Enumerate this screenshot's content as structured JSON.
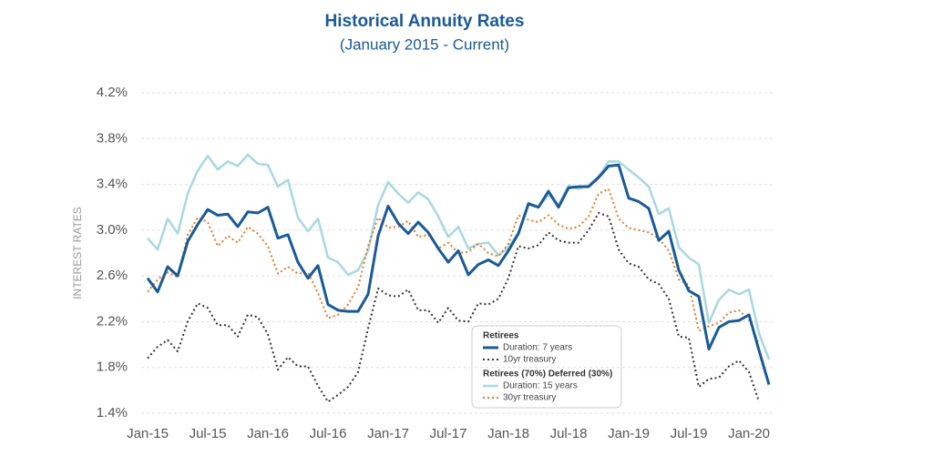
{
  "chart_data": {
    "type": "line",
    "title": "Historical Annuity Rates",
    "subtitle": "(January 2015 - Current)",
    "y_axis_label": "INTEREST RATES",
    "categories": [
      "Jan-15",
      null,
      null,
      null,
      null,
      null,
      "Jul-15",
      null,
      null,
      null,
      null,
      null,
      "Jan-16",
      null,
      null,
      null,
      null,
      null,
      "Jul-16",
      null,
      null,
      null,
      null,
      null,
      "Jan-17",
      null,
      null,
      null,
      null,
      null,
      "Jul-17",
      null,
      null,
      null,
      null,
      null,
      "Jan-18",
      null,
      null,
      null,
      null,
      null,
      "Jul-18",
      null,
      null,
      null,
      null,
      null,
      "Jan-19",
      null,
      null,
      null,
      null,
      null,
      "Jul-19",
      null,
      null,
      null,
      null,
      null,
      "Jan-20",
      null,
      null
    ],
    "ylim": [
      1.4,
      4.2
    ],
    "yticks": [
      {
        "value": 1.4,
        "label": "1.4%"
      },
      {
        "value": 1.8,
        "label": "1.8%"
      },
      {
        "value": 2.2,
        "label": "2.2%"
      },
      {
        "value": 2.6,
        "label": "2.6%"
      },
      {
        "value": 3.0,
        "label": "3.0%"
      },
      {
        "value": 3.4,
        "label": "3.4%"
      },
      {
        "value": 3.8,
        "label": "3.8%"
      },
      {
        "value": 4.2,
        "label": "4.2%"
      }
    ],
    "grid": true,
    "legend_groups": [
      "Retirees",
      "Retirees (70%) Deferred (30%)"
    ],
    "series": [
      {
        "name": "Duration: 7 years",
        "color": "#1a5a96",
        "line_style": "solid",
        "values": [
          2.58,
          2.46,
          2.68,
          2.6,
          2.9,
          3.05,
          3.18,
          3.13,
          3.14,
          3.03,
          3.16,
          3.15,
          3.2,
          2.93,
          2.96,
          2.72,
          2.58,
          2.69,
          2.35,
          2.3,
          2.29,
          2.29,
          2.44,
          2.95,
          3.21,
          3.06,
          2.97,
          3.07,
          2.98,
          2.84,
          2.72,
          2.82,
          2.61,
          2.7,
          2.74,
          2.69,
          2.82,
          2.97,
          3.23,
          3.2,
          3.34,
          3.2,
          3.37,
          3.38,
          3.38,
          3.46,
          3.56,
          3.57,
          3.28,
          3.25,
          3.19,
          2.91,
          2.99,
          2.65,
          2.47,
          2.42,
          1.96,
          2.15,
          2.2,
          2.21,
          2.26,
          1.95,
          1.65
        ]
      },
      {
        "name": "10yr treasury",
        "color": "#333333",
        "line_style": "dotted",
        "values": [
          1.88,
          1.98,
          2.04,
          1.94,
          2.2,
          2.36,
          2.32,
          2.17,
          2.17,
          2.07,
          2.26,
          2.24,
          2.09,
          1.78,
          1.89,
          1.81,
          1.81,
          1.64,
          1.5,
          1.56,
          1.63,
          1.76,
          2.14,
          2.49,
          2.43,
          2.42,
          2.48,
          2.3,
          2.3,
          2.19,
          2.32,
          2.21,
          2.2,
          2.36,
          2.35,
          2.4,
          2.58,
          2.86,
          2.84,
          2.87,
          2.98,
          2.91,
          2.89,
          2.89,
          3.0,
          3.15,
          3.12,
          2.83,
          2.71,
          2.68,
          2.57,
          2.53,
          2.4,
          2.07,
          2.06,
          1.63,
          1.7,
          1.71,
          1.81,
          1.86,
          1.76,
          1.5,
          null
        ]
      },
      {
        "name": "Duration: 15 years",
        "color": "#a8d8e0",
        "line_style": "solid",
        "values": [
          2.93,
          2.83,
          3.1,
          2.97,
          3.32,
          3.52,
          3.65,
          3.53,
          3.6,
          3.56,
          3.66,
          3.58,
          3.57,
          3.38,
          3.44,
          3.11,
          2.99,
          3.1,
          2.76,
          2.72,
          2.61,
          2.65,
          2.82,
          3.22,
          3.42,
          3.32,
          3.24,
          3.33,
          3.27,
          3.12,
          2.94,
          3.03,
          2.84,
          2.88,
          2.89,
          2.78,
          2.85,
          2.98,
          3.24,
          3.2,
          3.31,
          3.22,
          3.39,
          3.36,
          3.39,
          3.47,
          3.6,
          3.6,
          3.53,
          3.46,
          3.38,
          3.14,
          3.19,
          2.85,
          2.76,
          2.7,
          2.19,
          2.39,
          2.48,
          2.44,
          2.48,
          2.1,
          1.87
        ]
      },
      {
        "name": "30yr treasury",
        "color": "#e07b2a",
        "line_style": "dotted",
        "values": [
          2.46,
          2.57,
          2.63,
          2.59,
          2.96,
          3.11,
          3.07,
          2.86,
          2.95,
          2.89,
          3.03,
          2.97,
          2.86,
          2.62,
          2.68,
          2.62,
          2.63,
          2.45,
          2.23,
          2.26,
          2.35,
          2.5,
          2.86,
          3.11,
          3.02,
          3.03,
          3.08,
          2.94,
          2.96,
          2.84,
          2.89,
          2.8,
          2.81,
          2.88,
          2.8,
          2.77,
          2.88,
          3.13,
          3.09,
          3.07,
          3.13,
          3.05,
          3.01,
          3.03,
          3.12,
          3.32,
          3.36,
          3.1,
          3.02,
          3.0,
          2.98,
          2.93,
          2.82,
          2.57,
          2.52,
          2.12,
          2.16,
          2.19,
          2.28,
          2.3,
          2.22,
          2.0,
          null
        ]
      }
    ]
  }
}
